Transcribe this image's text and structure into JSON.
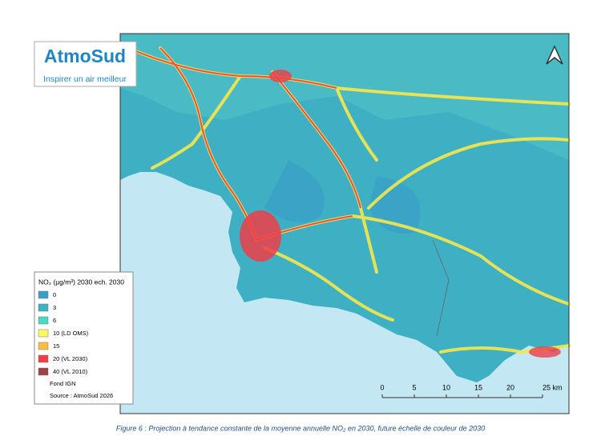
{
  "logo": {
    "name": "AtmoSud",
    "tagline": "Inspirer un air meilleur"
  },
  "legend": {
    "title": "NO₂ (µg/m³) 2030 ech. 2030",
    "items": [
      {
        "label": "0",
        "color": "#3a9fc8"
      },
      {
        "label": "3",
        "color": "#3cb2c2"
      },
      {
        "label": "6",
        "color": "#48dcc0"
      },
      {
        "label": "10 (LD OMS)",
        "color": "#fbfb5c"
      },
      {
        "label": "15",
        "color": "#fdbc42"
      },
      {
        "label": "20 (VL 2030)",
        "color": "#ee3e48"
      },
      {
        "label": "40 (VL 2010)",
        "color": "#9e4444"
      }
    ],
    "base": "Fond IGN",
    "source": "Source : AtmoSud 2026"
  },
  "scale": {
    "labels": [
      "0",
      "5",
      "10",
      "15",
      "20",
      "25 km"
    ]
  },
  "caption": "Figure 6 : Projection à tendance constante de la moyenne annuelle NO₂ en 2030, future échelle de couleur de 2030"
}
